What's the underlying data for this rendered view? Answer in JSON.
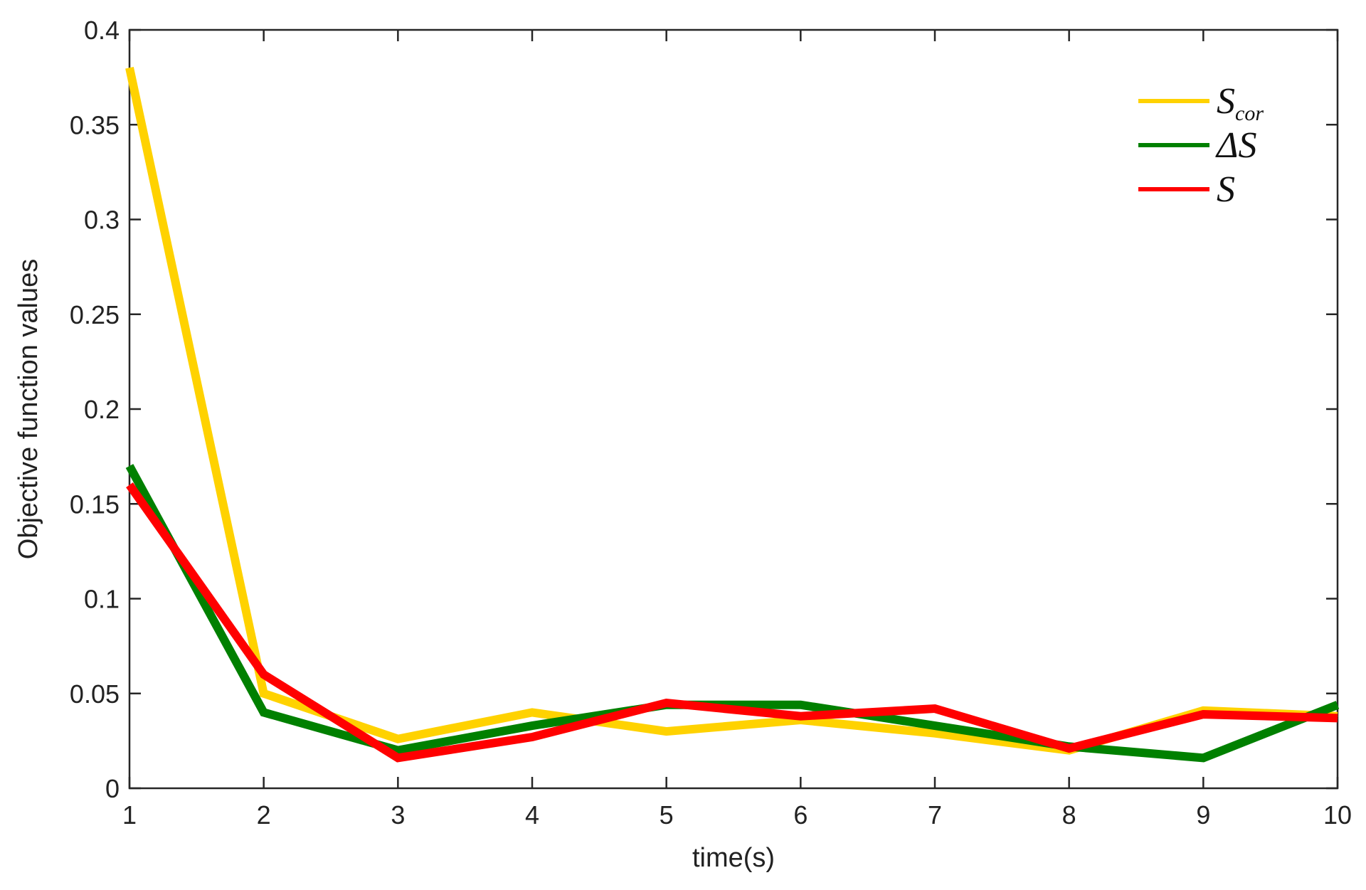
{
  "chart_data": {
    "type": "line",
    "title": "",
    "xlabel": "time(s)",
    "ylabel": "Objective function values",
    "xlim": [
      1,
      10
    ],
    "ylim": [
      0,
      0.4
    ],
    "xticks": [
      "1",
      "2",
      "3",
      "4",
      "5",
      "6",
      "7",
      "8",
      "9",
      "10"
    ],
    "yticks": [
      "0",
      "0.05",
      "0.1",
      "0.15",
      "0.2",
      "0.25",
      "0.3",
      "0.35",
      "0.4"
    ],
    "grid": false,
    "legend_position": "top-right",
    "x": [
      1,
      2,
      3,
      4,
      5,
      6,
      7,
      8,
      9,
      10
    ],
    "series": [
      {
        "name": "S_cor",
        "legend_main": "S",
        "legend_sub": "cor",
        "color": "#FFD200",
        "values": [
          0.38,
          0.05,
          0.026,
          0.04,
          0.03,
          0.036,
          0.029,
          0.02,
          0.041,
          0.038
        ]
      },
      {
        "name": "ΔS",
        "legend_main": "ΔS",
        "legend_sub": "",
        "color": "#008000",
        "values": [
          0.17,
          0.04,
          0.02,
          0.033,
          0.044,
          0.044,
          0.033,
          0.022,
          0.016,
          0.044
        ]
      },
      {
        "name": "S",
        "legend_main": "S",
        "legend_sub": "",
        "color": "#FF0000",
        "values": [
          0.16,
          0.06,
          0.016,
          0.027,
          0.045,
          0.038,
          0.042,
          0.021,
          0.039,
          0.037
        ]
      }
    ]
  }
}
